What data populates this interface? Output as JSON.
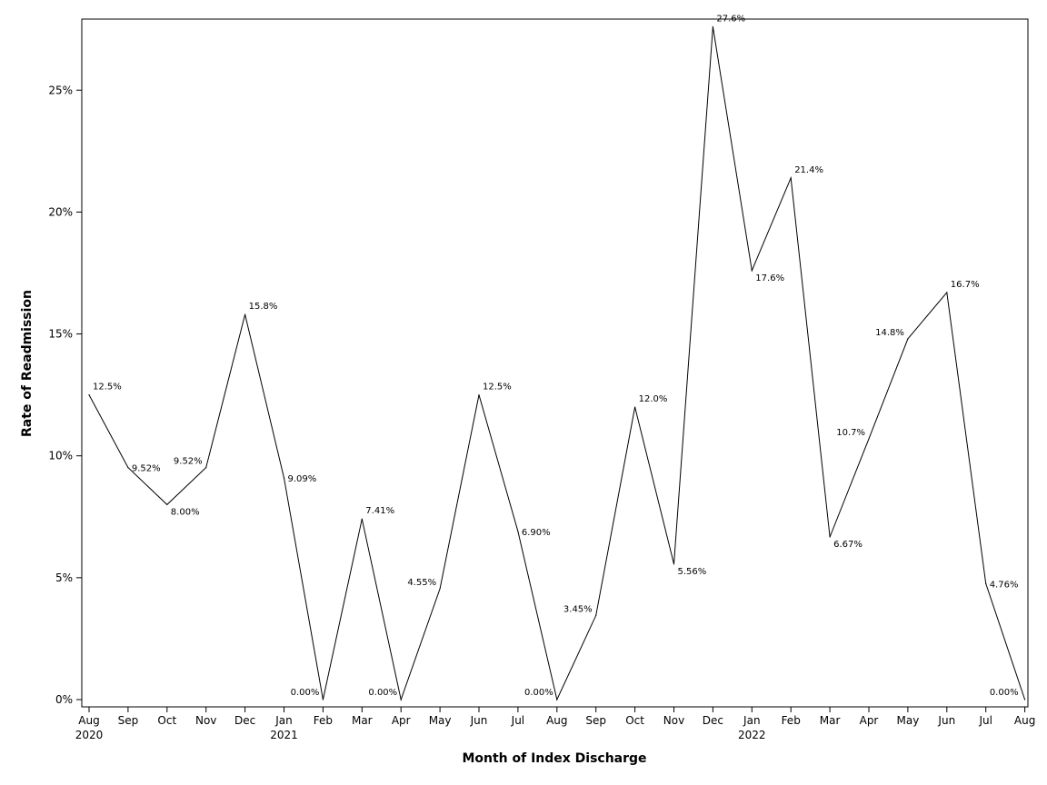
{
  "chart_data": {
    "type": "line",
    "xlabel": "Month of Index Discharge",
    "ylabel": "Rate of Readmission",
    "ylim": [
      0,
      27.6
    ],
    "yticks": [
      0,
      5,
      10,
      15,
      20,
      25
    ],
    "ytick_labels": [
      "0%",
      "5%",
      "10%",
      "15%",
      "20%",
      "25%"
    ],
    "grid": false,
    "categories": [
      "Aug",
      "Sep",
      "Oct",
      "Nov",
      "Dec",
      "Jan",
      "Feb",
      "Mar",
      "Apr",
      "May",
      "Jun",
      "Jul",
      "Aug",
      "Sep",
      "Oct",
      "Nov",
      "Dec",
      "Jan",
      "Feb",
      "Mar",
      "Apr",
      "May",
      "Jun",
      "Jul",
      "Aug"
    ],
    "year_labels": [
      {
        "index": 0,
        "label": "2020"
      },
      {
        "index": 5,
        "label": "2021"
      },
      {
        "index": 17,
        "label": "2022"
      }
    ],
    "x": [
      "2020-08",
      "2020-09",
      "2020-10",
      "2020-11",
      "2020-12",
      "2021-01",
      "2021-02",
      "2021-03",
      "2021-04",
      "2021-05",
      "2021-06",
      "2021-07",
      "2021-08",
      "2021-09",
      "2021-10",
      "2021-11",
      "2021-12",
      "2022-01",
      "2022-02",
      "2022-03",
      "2022-04",
      "2022-05",
      "2022-06",
      "2022-07",
      "2022-08"
    ],
    "values": [
      12.5,
      9.52,
      8.0,
      9.52,
      15.8,
      9.09,
      0.0,
      7.41,
      0.0,
      4.55,
      12.5,
      6.9,
      0.0,
      3.45,
      12.0,
      5.56,
      27.6,
      17.6,
      21.4,
      6.67,
      10.7,
      14.8,
      16.7,
      4.76,
      0.0
    ],
    "labels": [
      "12.5%",
      "9.52%",
      "8.00%",
      "9.52%",
      "15.8%",
      "9.09%",
      "0.00%",
      "7.41%",
      "0.00%",
      "4.55%",
      "12.5%",
      "6.90%",
      "0.00%",
      "3.45%",
      "12.0%",
      "5.56%",
      "27.6%",
      "17.6%",
      "21.4%",
      "6.67%",
      "10.7%",
      "14.8%",
      "16.7%",
      "4.76%",
      "0.00%"
    ]
  }
}
